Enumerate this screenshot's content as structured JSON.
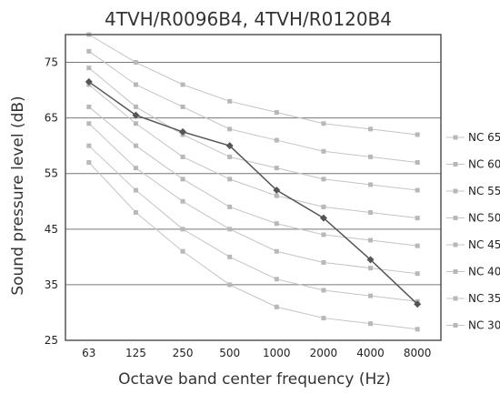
{
  "chart_data": {
    "type": "line",
    "title": "4TVH/R0096B4, 4TVH/R0120B4",
    "xlabel": "Octave band center frequency (Hz)",
    "ylabel": "Sound pressure level (dB)",
    "categories": [
      "63",
      "125",
      "250",
      "500",
      "1000",
      "2000",
      "4000",
      "8000"
    ],
    "yticks": [
      25,
      35,
      45,
      55,
      65,
      75
    ],
    "ylim": [
      25,
      80
    ],
    "grid": "horizontal",
    "legend_position": "right",
    "series": [
      {
        "name": "NC 65",
        "style": "nc",
        "values": [
          80,
          75,
          71,
          68,
          66,
          64,
          63,
          62
        ]
      },
      {
        "name": "NC 60",
        "style": "nc",
        "values": [
          77,
          71,
          67,
          63,
          61,
          59,
          58,
          57
        ]
      },
      {
        "name": "NC 55",
        "style": "nc",
        "values": [
          74,
          67,
          62,
          58,
          56,
          54,
          53,
          52
        ]
      },
      {
        "name": "NC 50",
        "style": "nc",
        "values": [
          71,
          64,
          58,
          54,
          51,
          49,
          48,
          47
        ]
      },
      {
        "name": "NC 45",
        "style": "nc",
        "values": [
          67,
          60,
          54,
          49,
          46,
          44,
          43,
          42
        ]
      },
      {
        "name": "NC 40",
        "style": "nc",
        "values": [
          64,
          56,
          50,
          45,
          41,
          39,
          38,
          37
        ]
      },
      {
        "name": "NC 35",
        "style": "nc",
        "values": [
          60,
          52,
          45,
          40,
          36,
          34,
          33,
          32
        ]
      },
      {
        "name": "NC 30",
        "style": "nc",
        "values": [
          57,
          48,
          41,
          35,
          31,
          29,
          28,
          27
        ]
      },
      {
        "style": "measured",
        "values": [
          71.5,
          65.5,
          62.5,
          60,
          52,
          47,
          39.5,
          31.5
        ]
      }
    ],
    "colors": {
      "nc_line": "#c4c4c4",
      "nc_marker": "#b8b8b8",
      "measured": "#555555",
      "grid": "#777777",
      "frame": "#555555"
    }
  }
}
